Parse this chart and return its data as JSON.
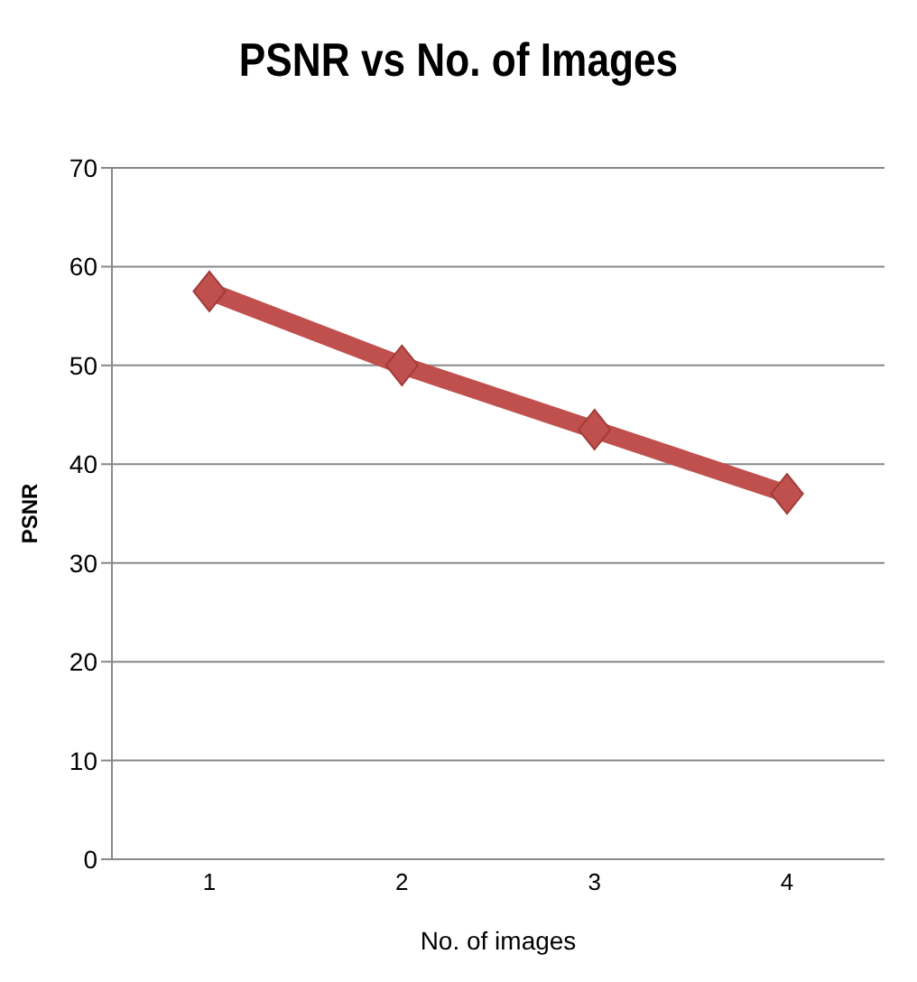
{
  "chart_data": {
    "type": "line",
    "title": "PSNR vs No. of Images",
    "xlabel": "No. of images",
    "ylabel": "PSNR",
    "categories": [
      "1",
      "2",
      "3",
      "4"
    ],
    "series": [
      {
        "color": "#c0504d",
        "values": [
          57.5,
          50,
          43.5,
          37
        ]
      }
    ],
    "ylim": [
      0,
      70
    ],
    "yticks": [
      0,
      10,
      20,
      30,
      40,
      50,
      60,
      70
    ],
    "grid": "y",
    "marker": "diamond"
  }
}
